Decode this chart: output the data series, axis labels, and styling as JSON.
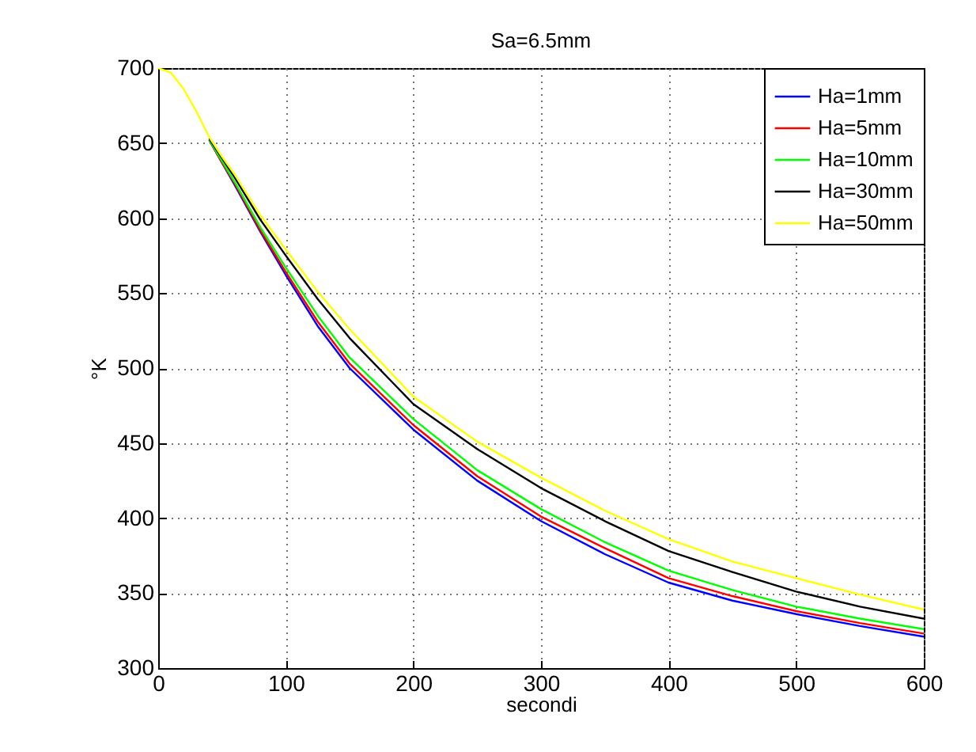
{
  "chart_data": {
    "type": "line",
    "title": "Sa=6.5mm",
    "xlabel": "secondi",
    "ylabel": "°K",
    "x": [
      0,
      10,
      20,
      30,
      40,
      50,
      60,
      80,
      100,
      125,
      150,
      200,
      250,
      300,
      350,
      400,
      450,
      500,
      550,
      600
    ],
    "series": [
      {
        "name": "Ha=1mm",
        "color": "#0000ff",
        "values": [
          null,
          null,
          null,
          null,
          652,
          637,
          622,
          591,
          562,
          528,
          500,
          459,
          425,
          398,
          376,
          357,
          345,
          336,
          328,
          321
        ]
      },
      {
        "name": "Ha=5mm",
        "color": "#ff0000",
        "values": [
          null,
          null,
          null,
          null,
          652,
          637,
          623,
          592,
          564,
          531,
          503,
          462,
          428,
          401,
          380,
          360,
          348,
          338,
          330,
          323
        ]
      },
      {
        "name": "Ha=10mm",
        "color": "#00ff00",
        "values": [
          null,
          null,
          null,
          null,
          652,
          638,
          624,
          594,
          567,
          535,
          507,
          466,
          432,
          406,
          384,
          365,
          352,
          341,
          333,
          326
        ]
      },
      {
        "name": "Ha=30mm",
        "color": "#000000",
        "values": [
          null,
          null,
          null,
          null,
          653,
          640,
          627,
          599,
          575,
          546,
          520,
          476,
          446,
          420,
          398,
          378,
          364,
          351,
          341,
          333
        ]
      },
      {
        "name": "Ha=50mm",
        "color": "#ffff00",
        "values": [
          700,
          697,
          686,
          671,
          654,
          641,
          629,
          602,
          579,
          551,
          526,
          481,
          451,
          427,
          405,
          386,
          371,
          360,
          349,
          339
        ]
      }
    ],
    "xlim": [
      0,
      600
    ],
    "xticks": [
      0,
      100,
      200,
      300,
      400,
      500,
      600
    ],
    "ylim": [
      300,
      700
    ],
    "yticks": [
      300,
      350,
      400,
      450,
      500,
      550,
      600,
      650,
      700
    ],
    "grid": true,
    "legend": "top right"
  }
}
